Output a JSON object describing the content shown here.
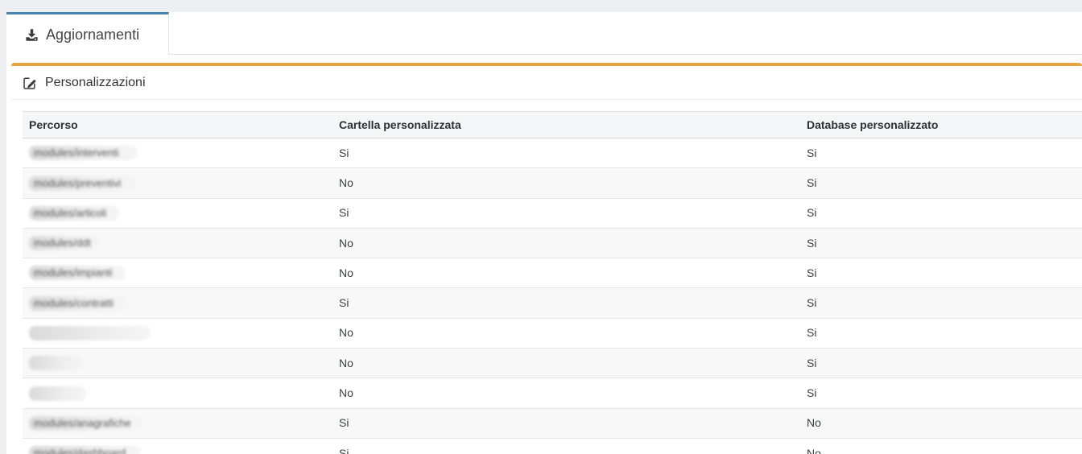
{
  "colors": {
    "page_background": "#edeff2",
    "tab_indicator_blue": "#4784ab",
    "card_accent_orange": "#e8a33d"
  },
  "tab": {
    "label": "Aggiornamenti",
    "icon": "download-icon",
    "active": true
  },
  "card": {
    "title": "Personalizzazioni",
    "icon": "edit-icon"
  },
  "table": {
    "columns": [
      "Percorso",
      "Cartella personalizzata",
      "Database personalizzato"
    ],
    "rows": [
      {
        "percorso": "modules/interventi",
        "redacted": true,
        "blur_width": 135,
        "cartella": "Si",
        "database": "Si"
      },
      {
        "percorso": "modules/preventivi",
        "redacted": true,
        "blur_width": 133,
        "cartella": "No",
        "database": "Si"
      },
      {
        "percorso": "modules/articoli",
        "redacted": true,
        "blur_width": 112,
        "cartella": "Si",
        "database": "Si"
      },
      {
        "percorso": "modules/ddt",
        "redacted": true,
        "blur_width": 88,
        "cartella": "No",
        "database": "Si"
      },
      {
        "percorso": "modules/impianti",
        "redacted": true,
        "blur_width": 120,
        "cartella": "No",
        "database": "Si"
      },
      {
        "percorso": "modules/contratti",
        "redacted": true,
        "blur_width": 122,
        "cartella": "Si",
        "database": "Si"
      },
      {
        "percorso": "",
        "redacted": true,
        "blur_width": 151,
        "cartella": "No",
        "database": "Si"
      },
      {
        "percorso": "",
        "redacted": true,
        "blur_width": 67,
        "cartella": "No",
        "database": "Si"
      },
      {
        "percorso": "",
        "redacted": true,
        "blur_width": 71,
        "cartella": "No",
        "database": "Si"
      },
      {
        "percorso": "modules/anagrafiche",
        "redacted": true,
        "blur_width": 143,
        "cartella": "Si",
        "database": "No"
      },
      {
        "percorso": "modules/dashboard",
        "redacted": true,
        "blur_width": 139,
        "cartella": "Si",
        "database": "No"
      }
    ]
  }
}
